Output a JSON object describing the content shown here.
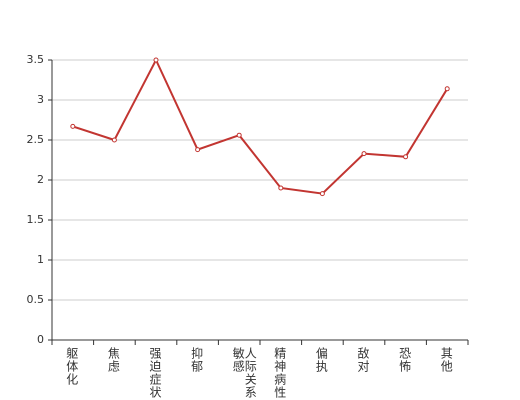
{
  "chart_data": {
    "type": "line",
    "categories": [
      "躯体化",
      "焦虑",
      "强迫症状",
      "抑郁",
      "人际关系敏感",
      "精神病性",
      "偏执",
      "敌对",
      "恐怖",
      "其他"
    ],
    "values": [
      2.67,
      2.5,
      3.5,
      2.38,
      2.56,
      1.9,
      1.83,
      2.33,
      2.29,
      3.14
    ],
    "color": "#c23531",
    "ylim": [
      0,
      3.5
    ],
    "yticks": [
      0,
      0.5,
      1,
      1.5,
      2,
      2.5,
      3,
      3.5
    ],
    "grid": true
  }
}
